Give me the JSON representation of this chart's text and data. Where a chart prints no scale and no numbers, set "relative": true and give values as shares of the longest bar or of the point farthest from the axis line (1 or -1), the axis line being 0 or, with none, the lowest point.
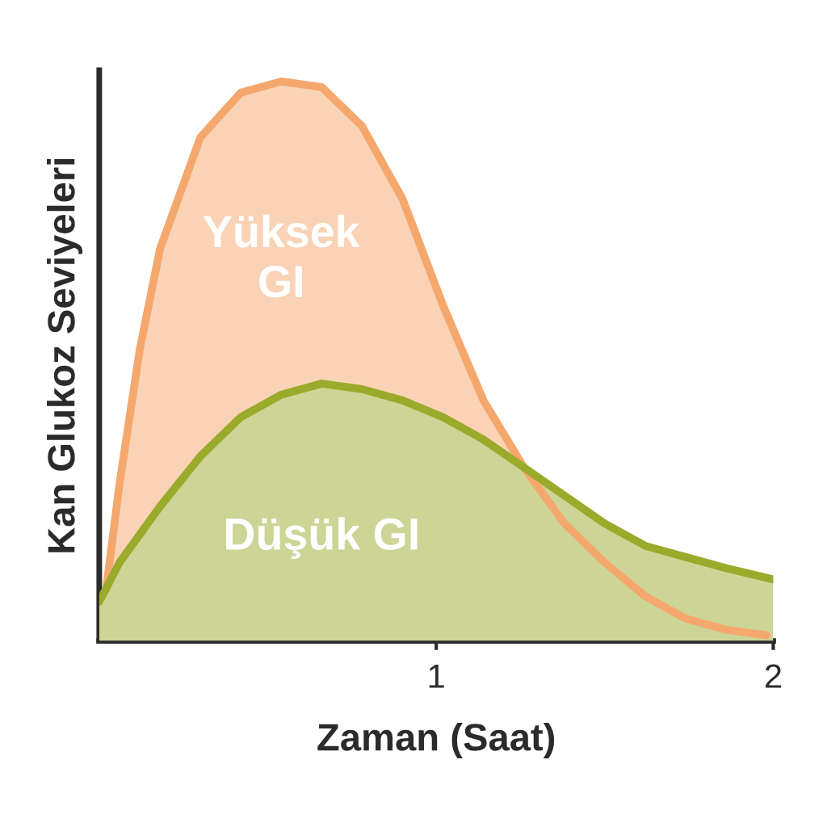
{
  "chart_data": {
    "type": "area",
    "xlabel": "Zaman (Saat)",
    "ylabel": "Kan Glukoz Seviyeleri",
    "relative": true,
    "xlim": [
      0,
      2
    ],
    "xticks": [
      1,
      2
    ],
    "grid": false,
    "legend": false,
    "series": [
      {
        "name": "Yüksek\nGI",
        "color": "#f5a86e",
        "x": [
          0.02,
          0.06,
          0.12,
          0.18,
          0.3,
          0.42,
          0.54,
          0.66,
          0.78,
          0.9,
          1.02,
          1.14,
          1.26,
          1.38,
          1.5,
          1.62,
          1.74,
          1.86,
          1.98
        ],
        "values": [
          0.09,
          0.28,
          0.52,
          0.7,
          0.9,
          0.98,
          1.0,
          0.99,
          0.92,
          0.79,
          0.6,
          0.43,
          0.31,
          0.21,
          0.14,
          0.08,
          0.04,
          0.02,
          0.01
        ]
      },
      {
        "name": "Düşük GI",
        "color": "#9aab2c",
        "x": [
          0.0,
          0.06,
          0.18,
          0.3,
          0.42,
          0.54,
          0.66,
          0.78,
          0.9,
          1.02,
          1.14,
          1.26,
          1.38,
          1.5,
          1.62,
          1.74,
          1.86,
          2.0
        ],
        "values": [
          0.07,
          0.14,
          0.24,
          0.33,
          0.4,
          0.44,
          0.46,
          0.45,
          0.43,
          0.4,
          0.36,
          0.31,
          0.26,
          0.21,
          0.17,
          0.15,
          0.13,
          0.11
        ]
      }
    ]
  }
}
